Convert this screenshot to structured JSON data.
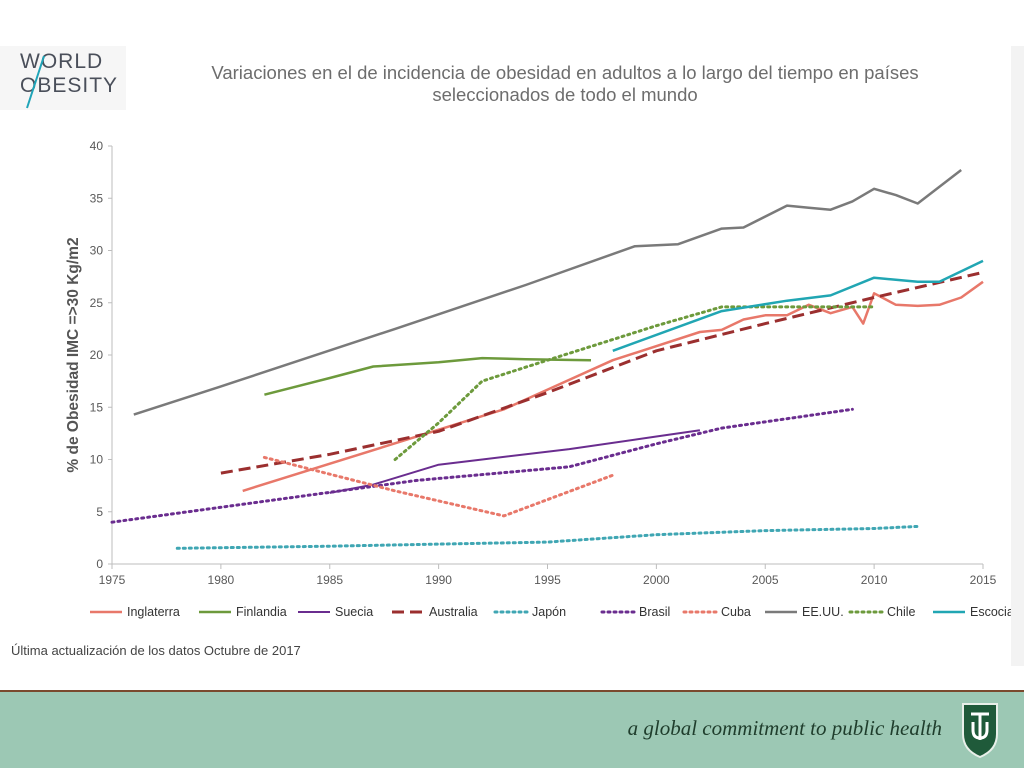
{
  "logo": {
    "line1": "WORLD",
    "line2": "OBESITY"
  },
  "footnote": "Última actualización de los datos Octubre de  2017",
  "tagline": "a global commitment to public health",
  "chart_data": {
    "type": "line",
    "title_lines": [
      "Variaciones en el  de incidencia de obesidad en adultos a lo largo del tiempo en países",
      "seleccionados de todo el mundo"
    ],
    "ylabel": "% de Obesidad IMC =>30 Kg/m2",
    "xlabel": "",
    "xlim": [
      1975,
      2015
    ],
    "ylim": [
      0,
      40
    ],
    "x_ticks": [
      1975,
      1980,
      1985,
      1990,
      1995,
      2000,
      2005,
      2010,
      2015
    ],
    "y_ticks": [
      0,
      5,
      10,
      15,
      20,
      25,
      30,
      35,
      40
    ],
    "grid": false,
    "legend_position": "bottom",
    "series": [
      {
        "name": "Inglaterra",
        "color": "#e8786a",
        "dash": "solid",
        "width": 2.5,
        "points": [
          [
            1981,
            7.0
          ],
          [
            1993,
            14.8
          ],
          [
            1998,
            19.5
          ],
          [
            2002,
            22.2
          ],
          [
            2003,
            22.4
          ],
          [
            2004,
            23.4
          ],
          [
            2005,
            23.8
          ],
          [
            2006,
            23.8
          ],
          [
            2007,
            24.8
          ],
          [
            2008,
            24.0
          ],
          [
            2009,
            24.6
          ],
          [
            2009.5,
            23.0
          ],
          [
            2010,
            25.9
          ],
          [
            2011,
            24.8
          ],
          [
            2012,
            24.7
          ],
          [
            2013,
            24.8
          ],
          [
            2014,
            25.5
          ],
          [
            2015,
            27.0
          ]
        ]
      },
      {
        "name": "Finlandia",
        "color": "#6d9a3c",
        "dash": "solid",
        "width": 2.5,
        "points": [
          [
            1982,
            16.2
          ],
          [
            1985,
            17.8
          ],
          [
            1987,
            18.9
          ],
          [
            1990,
            19.3
          ],
          [
            1992,
            19.7
          ],
          [
            1994,
            19.6
          ],
          [
            1997,
            19.5
          ]
        ]
      },
      {
        "name": "Suecia",
        "color": "#6a2d8f",
        "dash": "solid",
        "width": 2,
        "points": [
          [
            1985,
            6.8
          ],
          [
            1987,
            7.6
          ],
          [
            1990,
            9.5
          ],
          [
            1992,
            10.0
          ],
          [
            1996,
            11.0
          ],
          [
            2000,
            12.2
          ],
          [
            2002,
            12.8
          ]
        ]
      },
      {
        "name": "Australia",
        "color": "#9b2f2f",
        "dash": "dashed",
        "width": 3,
        "points": [
          [
            1980,
            8.7
          ],
          [
            1985,
            10.5
          ],
          [
            1990,
            12.7
          ],
          [
            1995,
            16.4
          ],
          [
            2000,
            20.4
          ],
          [
            2005,
            23.0
          ],
          [
            2010,
            25.5
          ],
          [
            2015,
            27.9
          ]
        ]
      },
      {
        "name": "Japón",
        "color": "#3fa6b3",
        "dash": "dotted",
        "width": 3,
        "points": [
          [
            1978,
            1.5
          ],
          [
            1985,
            1.7
          ],
          [
            1990,
            1.9
          ],
          [
            1995,
            2.1
          ],
          [
            2000,
            2.8
          ],
          [
            2005,
            3.2
          ],
          [
            2010,
            3.4
          ],
          [
            2012,
            3.6
          ]
        ]
      },
      {
        "name": "Brasil",
        "color": "#6a2d8f",
        "dash": "dotted",
        "width": 3,
        "points": [
          [
            1975,
            4.0
          ],
          [
            1989,
            8.0
          ],
          [
            1996,
            9.3
          ],
          [
            2000,
            11.5
          ],
          [
            2003,
            13.0
          ],
          [
            2009,
            14.8
          ]
        ]
      },
      {
        "name": "Cuba",
        "color": "#e8786a",
        "dash": "dotted",
        "width": 3,
        "points": [
          [
            1982,
            10.2
          ],
          [
            1988,
            7.0
          ],
          [
            1993,
            4.6
          ],
          [
            1998,
            8.5
          ]
        ]
      },
      {
        "name": "EE.UU.",
        "color": "#7a7a7a",
        "dash": "solid",
        "width": 2.5,
        "points": [
          [
            1976,
            14.3
          ],
          [
            1980,
            17.0
          ],
          [
            1988,
            22.5
          ],
          [
            1994,
            26.7
          ],
          [
            1999,
            30.4
          ],
          [
            2001,
            30.6
          ],
          [
            2003,
            32.1
          ],
          [
            2004,
            32.2
          ],
          [
            2006,
            34.3
          ],
          [
            2007,
            34.1
          ],
          [
            2008,
            33.9
          ],
          [
            2009,
            34.7
          ],
          [
            2010,
            35.9
          ],
          [
            2011,
            35.3
          ],
          [
            2012,
            34.5
          ],
          [
            2014,
            37.7
          ]
        ]
      },
      {
        "name": "Chile",
        "color": "#6d9a3c",
        "dash": "dotted",
        "width": 3,
        "points": [
          [
            1988,
            10.0
          ],
          [
            1990,
            13.5
          ],
          [
            1992,
            17.5
          ],
          [
            1995,
            19.5
          ],
          [
            2000,
            22.8
          ],
          [
            2003,
            24.6
          ],
          [
            2005,
            24.6
          ],
          [
            2010,
            24.6
          ]
        ]
      },
      {
        "name": "Escocia",
        "color": "#21a6b3",
        "dash": "solid",
        "width": 2.5,
        "points": [
          [
            1998,
            20.4
          ],
          [
            2003,
            24.2
          ],
          [
            2006,
            25.2
          ],
          [
            2008,
            25.7
          ],
          [
            2010,
            27.4
          ],
          [
            2012,
            27.0
          ],
          [
            2013,
            27.0
          ],
          [
            2015,
            29.0
          ]
        ]
      }
    ]
  }
}
